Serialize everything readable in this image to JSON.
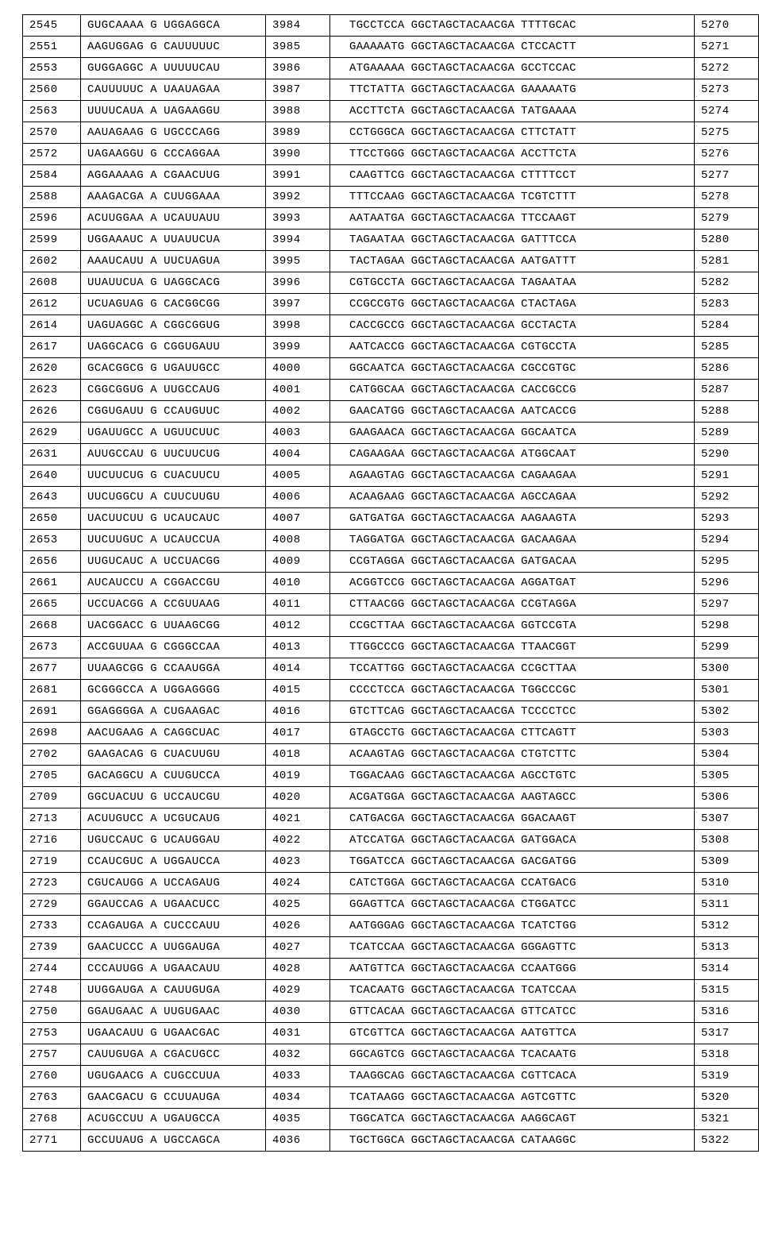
{
  "rows": [
    {
      "n1": "2545",
      "s1a": "GUGCAAAA",
      "s1b": "G",
      "s1c": "UGGAGGCA",
      "n2": "3984",
      "s2a": "TGCCTCCA",
      "s2b": "GGCTAGCTACAACGA",
      "s2c": "TTTTGCAC",
      "n3": "5270"
    },
    {
      "n1": "2551",
      "s1a": "AAGUGGAG",
      "s1b": "G",
      "s1c": "CAUUUUUC",
      "n2": "3985",
      "s2a": "GAAAAATG",
      "s2b": "GGCTAGCTACAACGA",
      "s2c": "CTCCACTT",
      "n3": "5271"
    },
    {
      "n1": "2553",
      "s1a": "GUGGAGGC",
      "s1b": "A",
      "s1c": "UUUUUCAU",
      "n2": "3986",
      "s2a": "ATGAAAAA",
      "s2b": "GGCTAGCTACAACGA",
      "s2c": "GCCTCCAC",
      "n3": "5272"
    },
    {
      "n1": "2560",
      "s1a": "CAUUUUUC",
      "s1b": "A",
      "s1c": "UAAUAGAA",
      "n2": "3987",
      "s2a": "TTCTATTA",
      "s2b": "GGCTAGCTACAACGA",
      "s2c": "GAAAAATG",
      "n3": "5273"
    },
    {
      "n1": "2563",
      "s1a": "UUUUCAUA",
      "s1b": "A",
      "s1c": "UAGAAGGU",
      "n2": "3988",
      "s2a": "ACCTTCTA",
      "s2b": "GGCTAGCTACAACGA",
      "s2c": "TATGAAAA",
      "n3": "5274"
    },
    {
      "n1": "2570",
      "s1a": "AAUAGAAG",
      "s1b": "G",
      "s1c": "UGCCCAGG",
      "n2": "3989",
      "s2a": "CCTGGGCA",
      "s2b": "GGCTAGCTACAACGA",
      "s2c": "CTTCTATT",
      "n3": "5275"
    },
    {
      "n1": "2572",
      "s1a": "UAGAAGGU",
      "s1b": "G",
      "s1c": "CCCAGGAA",
      "n2": "3990",
      "s2a": "TTCCTGGG",
      "s2b": "GGCTAGCTACAACGA",
      "s2c": "ACCTTCTA",
      "n3": "5276"
    },
    {
      "n1": "2584",
      "s1a": "AGGAAAAG",
      "s1b": "A",
      "s1c": "CGAACUUG",
      "n2": "3991",
      "s2a": "CAAGTTCG",
      "s2b": "GGCTAGCTACAACGA",
      "s2c": "CTTTTCCT",
      "n3": "5277"
    },
    {
      "n1": "2588",
      "s1a": "AAAGACGA",
      "s1b": "A",
      "s1c": "CUUGGAAA",
      "n2": "3992",
      "s2a": "TTTCCAAG",
      "s2b": "GGCTAGCTACAACGA",
      "s2c": "TCGTCTTT",
      "n3": "5278"
    },
    {
      "n1": "2596",
      "s1a": "ACUUGGAA",
      "s1b": "A",
      "s1c": "UCAUUAUU",
      "n2": "3993",
      "s2a": "AATAATGA",
      "s2b": "GGCTAGCTACAACGA",
      "s2c": "TTCCAAGT",
      "n3": "5279"
    },
    {
      "n1": "2599",
      "s1a": "UGGAAAUC",
      "s1b": "A",
      "s1c": "UUAUUCUA",
      "n2": "3994",
      "s2a": "TAGAATAA",
      "s2b": "GGCTAGCTACAACGA",
      "s2c": "GATTTCCA",
      "n3": "5280"
    },
    {
      "n1": "2602",
      "s1a": "AAAUCAUU",
      "s1b": "A",
      "s1c": "UUCUAGUA",
      "n2": "3995",
      "s2a": "TACTAGAA",
      "s2b": "GGCTAGCTACAACGA",
      "s2c": "AATGATTT",
      "n3": "5281"
    },
    {
      "n1": "2608",
      "s1a": "UUAUUCUA",
      "s1b": "G",
      "s1c": "UAGGCACG",
      "n2": "3996",
      "s2a": "CGTGCCTA",
      "s2b": "GGCTAGCTACAACGA",
      "s2c": "TAGAATAA",
      "n3": "5282"
    },
    {
      "n1": "2612",
      "s1a": "UCUAGUAG",
      "s1b": "G",
      "s1c": "CACGGCGG",
      "n2": "3997",
      "s2a": "CCGCCGTG",
      "s2b": "GGCTAGCTACAACGA",
      "s2c": "CTACTAGA",
      "n3": "5283"
    },
    {
      "n1": "2614",
      "s1a": "UAGUAGGC",
      "s1b": "A",
      "s1c": "CGGCGGUG",
      "n2": "3998",
      "s2a": "CACCGCCG",
      "s2b": "GGCTAGCTACAACGA",
      "s2c": "GCCTACTA",
      "n3": "5284"
    },
    {
      "n1": "2617",
      "s1a": "UAGGCACG",
      "s1b": "G",
      "s1c": "CGGUGAUU",
      "n2": "3999",
      "s2a": "AATCACCG",
      "s2b": "GGCTAGCTACAACGA",
      "s2c": "CGTGCCTA",
      "n3": "5285"
    },
    {
      "n1": "2620",
      "s1a": "GCACGGCG",
      "s1b": "G",
      "s1c": "UGAUUGCC",
      "n2": "4000",
      "s2a": "GGCAATCA",
      "s2b": "GGCTAGCTACAACGA",
      "s2c": "CGCCGTGC",
      "n3": "5286"
    },
    {
      "n1": "2623",
      "s1a": "CGGCGGUG",
      "s1b": "A",
      "s1c": "UUGCCAUG",
      "n2": "4001",
      "s2a": "CATGGCAA",
      "s2b": "GGCTAGCTACAACGA",
      "s2c": "CACCGCCG",
      "n3": "5287"
    },
    {
      "n1": "2626",
      "s1a": "CGGUGAUU",
      "s1b": "G",
      "s1c": "CCAUGUUC",
      "n2": "4002",
      "s2a": "GAACATGG",
      "s2b": "GGCTAGCTACAACGA",
      "s2c": "AATCACCG",
      "n3": "5288"
    },
    {
      "n1": "2629",
      "s1a": "UGAUUGCC",
      "s1b": "A",
      "s1c": "UGUUCUUC",
      "n2": "4003",
      "s2a": "GAAGAACA",
      "s2b": "GGCTAGCTACAACGA",
      "s2c": "GGCAATCA",
      "n3": "5289"
    },
    {
      "n1": "2631",
      "s1a": "AUUGCCAU",
      "s1b": "G",
      "s1c": "UUCUUCUG",
      "n2": "4004",
      "s2a": "CAGAAGAA",
      "s2b": "GGCTAGCTACAACGA",
      "s2c": "ATGGCAAT",
      "n3": "5290"
    },
    {
      "n1": "2640",
      "s1a": "UUCUUCUG",
      "s1b": "G",
      "s1c": "CUACUUCU",
      "n2": "4005",
      "s2a": "AGAAGTAG",
      "s2b": "GGCTAGCTACAACGA",
      "s2c": "CAGAAGAA",
      "n3": "5291"
    },
    {
      "n1": "2643",
      "s1a": "UUCUGGCU",
      "s1b": "A",
      "s1c": "CUUCUUGU",
      "n2": "4006",
      "s2a": "ACAAGAAG",
      "s2b": "GGCTAGCTACAACGA",
      "s2c": "AGCCAGAA",
      "n3": "5292"
    },
    {
      "n1": "2650",
      "s1a": "UACUUCUU",
      "s1b": "G",
      "s1c": "UCAUCAUC",
      "n2": "4007",
      "s2a": "GATGATGA",
      "s2b": "GGCTAGCTACAACGA",
      "s2c": "AAGAAGTA",
      "n3": "5293"
    },
    {
      "n1": "2653",
      "s1a": "UUCUUGUC",
      "s1b": "A",
      "s1c": "UCAUCCUA",
      "n2": "4008",
      "s2a": "TAGGATGA",
      "s2b": "GGCTAGCTACAACGA",
      "s2c": "GACAAGAA",
      "n3": "5294"
    },
    {
      "n1": "2656",
      "s1a": "UUGUCAUC",
      "s1b": "A",
      "s1c": "UCCUACGG",
      "n2": "4009",
      "s2a": "CCGTAGGA",
      "s2b": "GGCTAGCTACAACGA",
      "s2c": "GATGACAA",
      "n3": "5295"
    },
    {
      "n1": "2661",
      "s1a": "AUCAUCCU",
      "s1b": "A",
      "s1c": "CGGACCGU",
      "n2": "4010",
      "s2a": "ACGGTCCG",
      "s2b": "GGCTAGCTACAACGA",
      "s2c": "AGGATGAT",
      "n3": "5296"
    },
    {
      "n1": "2665",
      "s1a": "UCCUACGG",
      "s1b": "A",
      "s1c": "CCGUUAAG",
      "n2": "4011",
      "s2a": "CTTAACGG",
      "s2b": "GGCTAGCTACAACGA",
      "s2c": "CCGTAGGA",
      "n3": "5297"
    },
    {
      "n1": "2668",
      "s1a": "UACGGACC",
      "s1b": "G",
      "s1c": "UUAAGCGG",
      "n2": "4012",
      "s2a": "CCGCTTAA",
      "s2b": "GGCTAGCTACAACGA",
      "s2c": "GGTCCGTA",
      "n3": "5298"
    },
    {
      "n1": "2673",
      "s1a": "ACCGUUAA",
      "s1b": "G",
      "s1c": "CGGGCCAA",
      "n2": "4013",
      "s2a": "TTGGCCCG",
      "s2b": "GGCTAGCTACAACGA",
      "s2c": "TTAACGGT",
      "n3": "5299"
    },
    {
      "n1": "2677",
      "s1a": "UUAAGCGG",
      "s1b": "G",
      "s1c": "CCAAUGGA",
      "n2": "4014",
      "s2a": "TCCATTGG",
      "s2b": "GGCTAGCTACAACGA",
      "s2c": "CCGCTTAA",
      "n3": "5300"
    },
    {
      "n1": "2681",
      "s1a": "GCGGGCCA",
      "s1b": "A",
      "s1c": "UGGAGGGG",
      "n2": "4015",
      "s2a": "CCCCTCCA",
      "s2b": "GGCTAGCTACAACGA",
      "s2c": "TGGCCCGC",
      "n3": "5301"
    },
    {
      "n1": "2691",
      "s1a": "GGAGGGGA",
      "s1b": "A",
      "s1c": "CUGAAGAC",
      "n2": "4016",
      "s2a": "GTCTTCAG",
      "s2b": "GGCTAGCTACAACGA",
      "s2c": "TCCCCTCC",
      "n3": "5302"
    },
    {
      "n1": "2698",
      "s1a": "AACUGAAG",
      "s1b": "A",
      "s1c": "CAGGCUAC",
      "n2": "4017",
      "s2a": "GTAGCCTG",
      "s2b": "GGCTAGCTACAACGA",
      "s2c": "CTTCAGTT",
      "n3": "5303"
    },
    {
      "n1": "2702",
      "s1a": "GAAGACAG",
      "s1b": "G",
      "s1c": "CUACUUGU",
      "n2": "4018",
      "s2a": "ACAAGTAG",
      "s2b": "GGCTAGCTACAACGA",
      "s2c": "CTGTCTTC",
      "n3": "5304"
    },
    {
      "n1": "2705",
      "s1a": "GACAGGCU",
      "s1b": "A",
      "s1c": "CUUGUCCA",
      "n2": "4019",
      "s2a": "TGGACAAG",
      "s2b": "GGCTAGCTACAACGA",
      "s2c": "AGCCTGTC",
      "n3": "5305"
    },
    {
      "n1": "2709",
      "s1a": "GGCUACUU",
      "s1b": "G",
      "s1c": "UCCAUCGU",
      "n2": "4020",
      "s2a": "ACGATGGA",
      "s2b": "GGCTAGCTACAACGA",
      "s2c": "AAGTAGCC",
      "n3": "5306"
    },
    {
      "n1": "2713",
      "s1a": "ACUUGUCC",
      "s1b": "A",
      "s1c": "UCGUCAUG",
      "n2": "4021",
      "s2a": "CATGACGA",
      "s2b": "GGCTAGCTACAACGA",
      "s2c": "GGACAAGT",
      "n3": "5307"
    },
    {
      "n1": "2716",
      "s1a": "UGUCCAUC",
      "s1b": "G",
      "s1c": "UCAUGGAU",
      "n2": "4022",
      "s2a": "ATCCATGA",
      "s2b": "GGCTAGCTACAACGA",
      "s2c": "GATGGACA",
      "n3": "5308"
    },
    {
      "n1": "2719",
      "s1a": "CCAUCGUC",
      "s1b": "A",
      "s1c": "UGGAUCCA",
      "n2": "4023",
      "s2a": "TGGATCCA",
      "s2b": "GGCTAGCTACAACGA",
      "s2c": "GACGATGG",
      "n3": "5309"
    },
    {
      "n1": "2723",
      "s1a": "CGUCAUGG",
      "s1b": "A",
      "s1c": "UCCAGAUG",
      "n2": "4024",
      "s2a": "CATCTGGA",
      "s2b": "GGCTAGCTACAACGA",
      "s2c": "CCATGACG",
      "n3": "5310"
    },
    {
      "n1": "2729",
      "s1a": "GGAUCCAG",
      "s1b": "A",
      "s1c": "UGAACUCC",
      "n2": "4025",
      "s2a": "GGAGTTCA",
      "s2b": "GGCTAGCTACAACGA",
      "s2c": "CTGGATCC",
      "n3": "5311"
    },
    {
      "n1": "2733",
      "s1a": "CCAGAUGA",
      "s1b": "A",
      "s1c": "CUCCCAUU",
      "n2": "4026",
      "s2a": "AATGGGAG",
      "s2b": "GGCTAGCTACAACGA",
      "s2c": "TCATCTGG",
      "n3": "5312"
    },
    {
      "n1": "2739",
      "s1a": "GAACUCCC",
      "s1b": "A",
      "s1c": "UUGGAUGA",
      "n2": "4027",
      "s2a": "TCATCCAA",
      "s2b": "GGCTAGCTACAACGA",
      "s2c": "GGGAGTTC",
      "n3": "5313"
    },
    {
      "n1": "2744",
      "s1a": "CCCAUUGG",
      "s1b": "A",
      "s1c": "UGAACAUU",
      "n2": "4028",
      "s2a": "AATGTTCA",
      "s2b": "GGCTAGCTACAACGA",
      "s2c": "CCAATGGG",
      "n3": "5314"
    },
    {
      "n1": "2748",
      "s1a": "UUGGAUGA",
      "s1b": "A",
      "s1c": "CAUUGUGA",
      "n2": "4029",
      "s2a": "TCACAATG",
      "s2b": "GGCTAGCTACAACGA",
      "s2c": "TCATCCAA",
      "n3": "5315"
    },
    {
      "n1": "2750",
      "s1a": "GGAUGAAC",
      "s1b": "A",
      "s1c": "UUGUGAAC",
      "n2": "4030",
      "s2a": "GTTCACAA",
      "s2b": "GGCTAGCTACAACGA",
      "s2c": "GTTCATCC",
      "n3": "5316"
    },
    {
      "n1": "2753",
      "s1a": "UGAACAUU",
      "s1b": "G",
      "s1c": "UGAACGAC",
      "n2": "4031",
      "s2a": "GTCGTTCA",
      "s2b": "GGCTAGCTACAACGA",
      "s2c": "AATGTTCA",
      "n3": "5317"
    },
    {
      "n1": "2757",
      "s1a": "CAUUGUGA",
      "s1b": "A",
      "s1c": "CGACUGCC",
      "n2": "4032",
      "s2a": "GGCAGTCG",
      "s2b": "GGCTAGCTACAACGA",
      "s2c": "TCACAATG",
      "n3": "5318"
    },
    {
      "n1": "2760",
      "s1a": "UGUGAACG",
      "s1b": "A",
      "s1c": "CUGCCUUA",
      "n2": "4033",
      "s2a": "TAAGGCAG",
      "s2b": "GGCTAGCTACAACGA",
      "s2c": "CGTTCACA",
      "n3": "5319"
    },
    {
      "n1": "2763",
      "s1a": "GAACGACU",
      "s1b": "G",
      "s1c": "CCUUAUGA",
      "n2": "4034",
      "s2a": "TCATAAGG",
      "s2b": "GGCTAGCTACAACGA",
      "s2c": "AGTCGTTC",
      "n3": "5320"
    },
    {
      "n1": "2768",
      "s1a": "ACUGCCUU",
      "s1b": "A",
      "s1c": "UGAUGCCA",
      "n2": "4035",
      "s2a": "TGGCATCA",
      "s2b": "GGCTAGCTACAACGA",
      "s2c": "AAGGCAGT",
      "n3": "5321"
    },
    {
      "n1": "2771",
      "s1a": "GCCUUAUG",
      "s1b": "A",
      "s1c": "UGCCAGCA",
      "n2": "4036",
      "s2a": "TGCTGGCA",
      "s2b": "GGCTAGCTACAACGA",
      "s2c": "CATAAGGC",
      "n3": "5322"
    }
  ]
}
